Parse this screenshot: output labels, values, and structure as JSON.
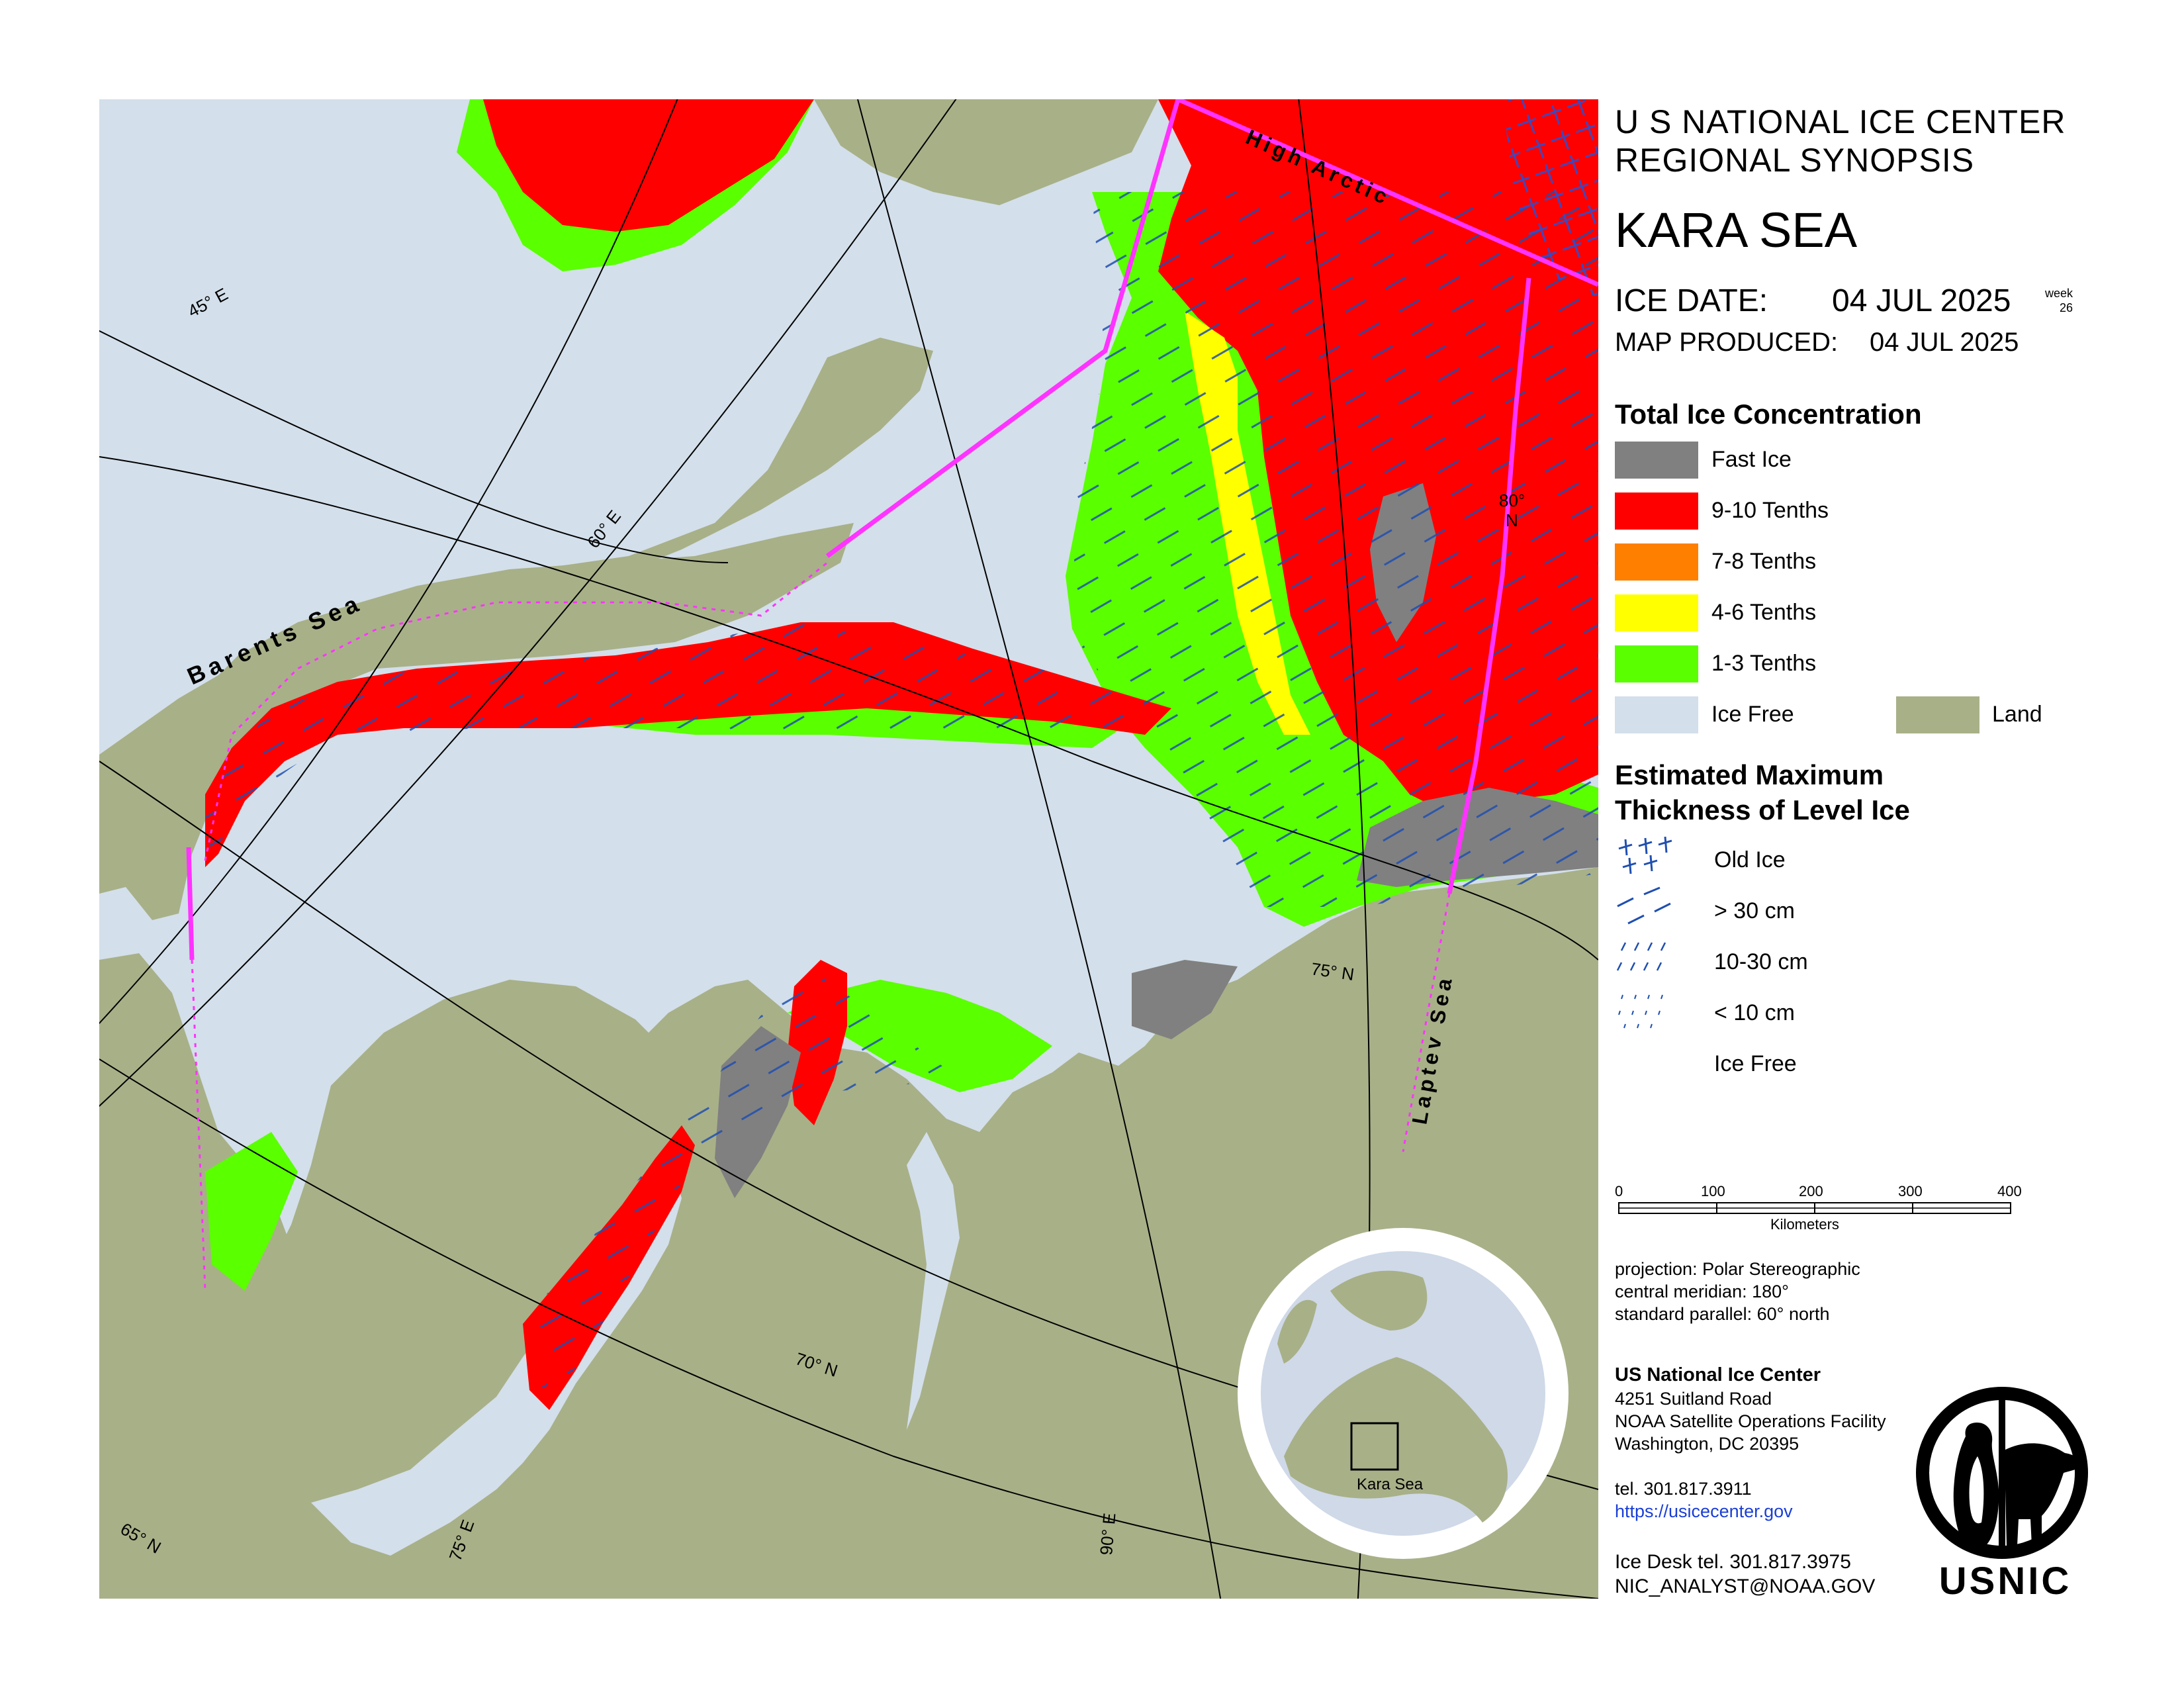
{
  "header": {
    "line1": "U S NATIONAL ICE CENTER",
    "line2": "REGIONAL SYNOPSIS",
    "region": "KARA SEA",
    "ice_date_label": "ICE DATE:",
    "ice_date": "04 JUL 2025",
    "week_label": "week",
    "week_number": "26",
    "produced_label": "MAP PRODUCED:",
    "produced_date": "04 JUL 2025"
  },
  "concentration_legend": {
    "title": "Total Ice Concentration",
    "items": [
      {
        "label": "Fast Ice",
        "color": "#808080"
      },
      {
        "label": "9-10 Tenths",
        "color": "#ff0000"
      },
      {
        "label": "7-8 Tenths",
        "color": "#ff7f00"
      },
      {
        "label": "4-6 Tenths",
        "color": "#ffff00"
      },
      {
        "label": "1-3 Tenths",
        "color": "#5aff00"
      },
      {
        "label": "Ice Free",
        "color": "#d3dfea"
      }
    ],
    "land_label": "Land",
    "land_color": "#a8b088"
  },
  "thickness_legend": {
    "title_line1": "Estimated Maximum",
    "title_line2": "Thickness of Level Ice",
    "items": [
      {
        "label": "Old Ice",
        "pattern": "old-ice"
      },
      {
        "label": "> 30 cm",
        "pattern": "long-dash"
      },
      {
        "label": "10-30 cm",
        "pattern": "short-dash"
      },
      {
        "label": "< 10 cm",
        "pattern": "dots"
      },
      {
        "label": "Ice Free",
        "pattern": "none"
      }
    ]
  },
  "scale_bar": {
    "ticks": [
      "0",
      "100",
      "200",
      "300",
      "400"
    ],
    "unit": "Kilometers"
  },
  "projection": {
    "line1": "projection: Polar Stereographic",
    "line2": "central meridian: 180°",
    "line3": "standard parallel:  60° north"
  },
  "contact": {
    "org": "US National Ice Center",
    "address1": "4251 Suitland Road",
    "address2": "NOAA Satellite Operations Facility",
    "address3": "Washington, DC  20395",
    "tel": "tel. 301.817.3911",
    "url": "https://usicecenter.gov",
    "desk_tel": "Ice Desk tel. 301.817.3975",
    "email": "NIC_ANALYST@NOAA.GOV",
    "logo_text": "USNIC"
  },
  "map": {
    "labels": {
      "barents": "Barents Sea",
      "high_arctic": "High Arctic",
      "laptev": "Laptev Sea"
    },
    "graticule": {
      "lon45": "45° E",
      "lon60": "60° E",
      "lon75": "75° E",
      "lon90": "90° E",
      "lat65": "65° N",
      "lat70": "70° N",
      "lat75": "75° N",
      "lat80a": "80°",
      "lat80b": "N"
    },
    "inset_label": "Kara Sea",
    "colors": {
      "ice_free": "#d3dfea",
      "land": "#a8b088",
      "fast_ice": "#808080",
      "conc_9_10": "#ff0000",
      "conc_4_6": "#ffff00",
      "conc_1_3": "#5aff00",
      "boundary": "#ff33ff",
      "hatch": "#1f4fb0"
    }
  }
}
